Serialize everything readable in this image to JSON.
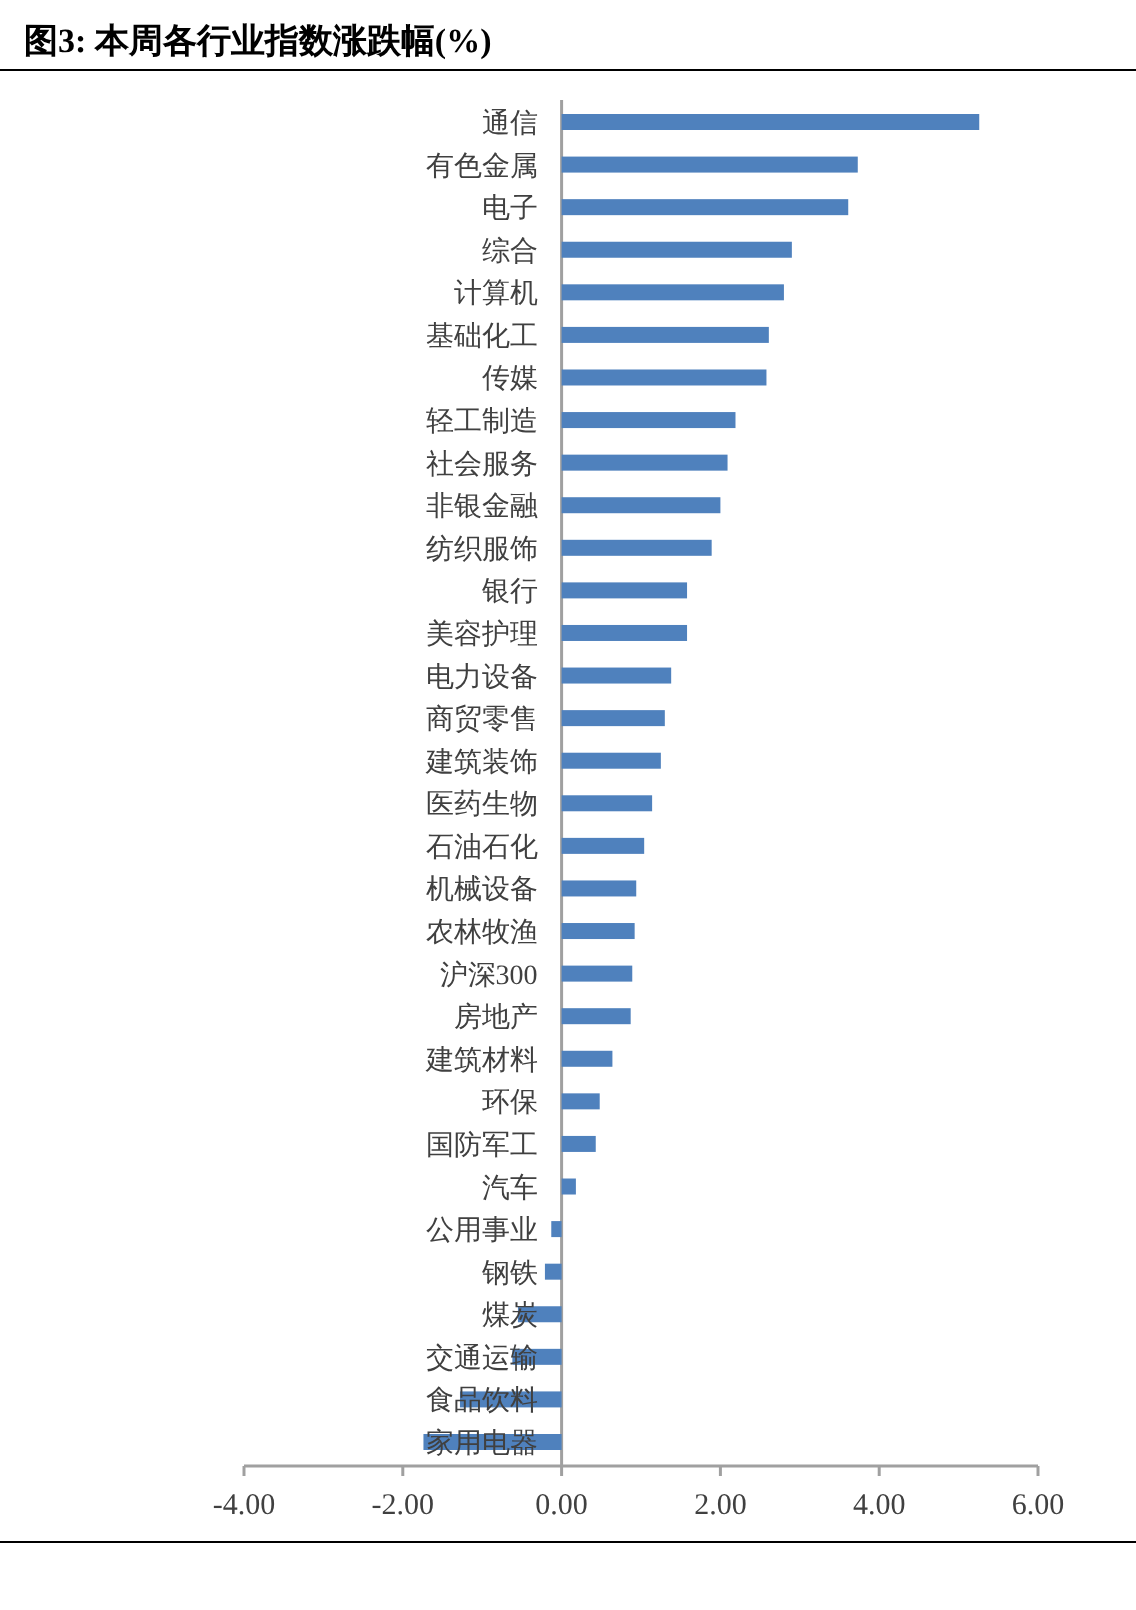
{
  "chart_data": {
    "type": "bar",
    "orientation": "horizontal",
    "title": "图3: 本周各行业指数涨跌幅(%)",
    "categories": [
      "通信",
      "有色金属",
      "电子",
      "综合",
      "计算机",
      "基础化工",
      "传媒",
      "轻工制造",
      "社会服务",
      "非银金融",
      "纺织服饰",
      "银行",
      "美容护理",
      "电力设备",
      "商贸零售",
      "建筑装饰",
      "医药生物",
      "石油石化",
      "机械设备",
      "农林牧渔",
      "沪深300",
      "房地产",
      "建筑材料",
      "环保",
      "国防军工",
      "汽车",
      "公用事业",
      "钢铁",
      "煤炭",
      "交通运输",
      "食品饮料",
      "家用电器"
    ],
    "values": [
      5.26,
      3.73,
      3.61,
      2.9,
      2.8,
      2.61,
      2.58,
      2.19,
      2.09,
      2.0,
      1.89,
      1.58,
      1.58,
      1.38,
      1.3,
      1.25,
      1.14,
      1.04,
      0.94,
      0.92,
      0.89,
      0.87,
      0.64,
      0.48,
      0.43,
      0.18,
      -0.13,
      -0.21,
      -0.55,
      -0.62,
      -1.28,
      -1.74
    ],
    "color": "#4f81bd",
    "xlim": [
      -4,
      6
    ],
    "xticks": [
      {
        "value": -4,
        "label": "-4.00"
      },
      {
        "value": -2,
        "label": "-2.00"
      },
      {
        "value": 0,
        "label": "0.00"
      },
      {
        "value": 2,
        "label": "2.00"
      },
      {
        "value": 4,
        "label": "4.00"
      },
      {
        "value": 6,
        "label": "6.00"
      }
    ],
    "grid": false
  }
}
